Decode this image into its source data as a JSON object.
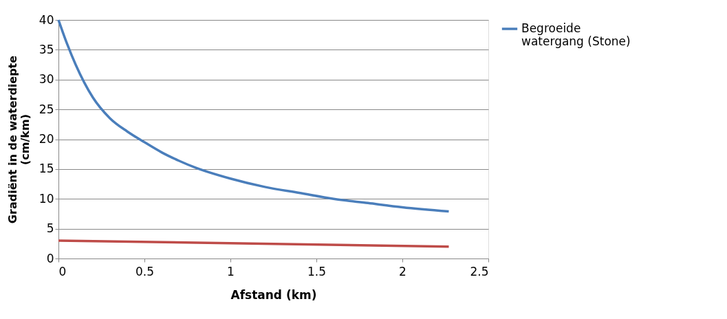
{
  "chart_data": {
    "type": "line",
    "xlabel": "Afstand (km)",
    "ylabel": "Gradiënt in de waterdiepte (cm/km)",
    "xlim": [
      0,
      2.5
    ],
    "xticks": [
      0,
      0.5,
      1,
      1.5,
      2,
      2.5
    ],
    "ylim": [
      0,
      40
    ],
    "yticks": [
      0,
      5,
      10,
      15,
      20,
      25,
      30,
      35,
      40
    ],
    "grid": "y",
    "legend": "right",
    "marker": "none",
    "line_style": "solid",
    "series": [
      {
        "name": "Begroeide watergang (Stone)",
        "color": "#4a7ebb",
        "x": [
          0,
          0.05,
          0.1,
          0.2,
          0.3,
          0.4,
          0.5,
          0.6,
          0.7,
          0.8,
          1.0,
          1.2,
          1.4,
          1.6,
          1.8,
          2.0,
          2.27
        ],
        "values": [
          40,
          36,
          32.5,
          27,
          23.5,
          21.3,
          19.5,
          17.8,
          16.4,
          15.2,
          13.4,
          12,
          11,
          10,
          9.3,
          8.6,
          7.9
        ]
      },
      {
        "color": "#be4b48",
        "x": [
          0,
          2.27
        ],
        "values": [
          3,
          2
        ]
      }
    ]
  }
}
